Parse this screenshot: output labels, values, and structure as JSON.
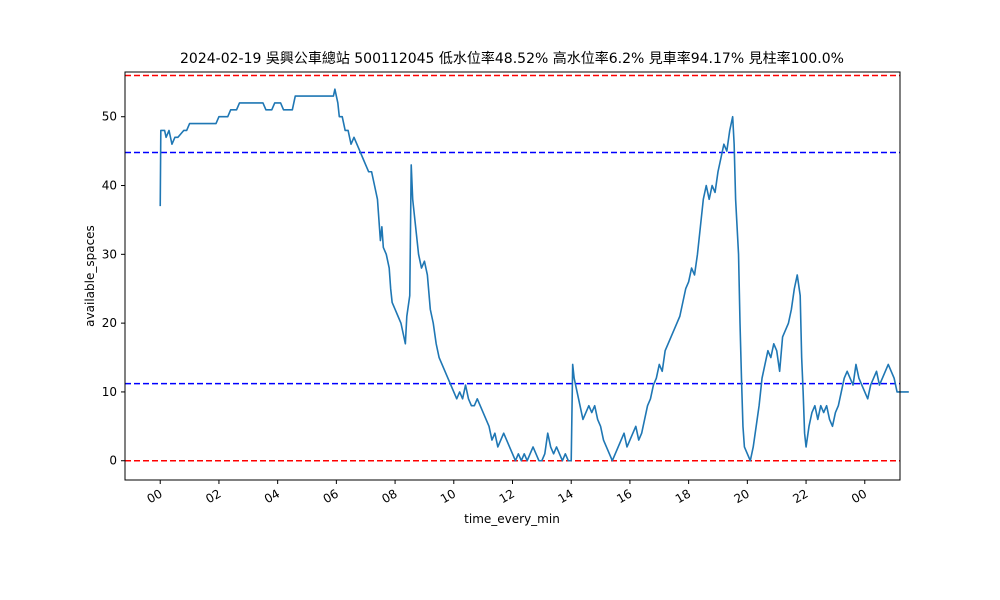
{
  "chart_data": {
    "type": "line",
    "title": "2024-02-19 吳興公車總站 500112045 低水位率48.52% 高水位率6.2% 見車率94.17% 見柱率100.0%",
    "xlabel": "time_every_min",
    "ylabel": "available_spaces",
    "x_ticks": [
      "00",
      "02",
      "04",
      "06",
      "08",
      "10",
      "12",
      "14",
      "16",
      "18",
      "20",
      "22",
      "00"
    ],
    "x_tick_hours": [
      0,
      2,
      4,
      6,
      8,
      10,
      12,
      14,
      16,
      18,
      20,
      22,
      24
    ],
    "y_ticks": [
      0,
      10,
      20,
      30,
      40,
      50
    ],
    "xlim": [
      -1.2,
      25.2
    ],
    "ylim": [
      -2.8,
      56.5
    ],
    "grid": false,
    "reference_lines": [
      {
        "y": 56,
        "color": "#ff0000",
        "style": "dashed"
      },
      {
        "y": 44.8,
        "color": "#0000ff",
        "style": "dashed"
      },
      {
        "y": 11.2,
        "color": "#0000ff",
        "style": "dashed"
      },
      {
        "y": 0,
        "color": "#ff0000",
        "style": "dashed"
      }
    ],
    "series": [
      {
        "color": "#1f77b4",
        "points": [
          [
            0.0,
            37
          ],
          [
            0.02,
            48
          ],
          [
            0.15,
            48
          ],
          [
            0.2,
            47
          ],
          [
            0.3,
            48
          ],
          [
            0.4,
            46
          ],
          [
            0.5,
            47
          ],
          [
            0.6,
            47
          ],
          [
            0.8,
            48
          ],
          [
            0.9,
            48
          ],
          [
            1.0,
            49
          ],
          [
            1.5,
            49
          ],
          [
            1.9,
            49
          ],
          [
            2.0,
            50
          ],
          [
            2.3,
            50
          ],
          [
            2.4,
            51
          ],
          [
            2.6,
            51
          ],
          [
            2.7,
            52
          ],
          [
            3.0,
            52
          ],
          [
            3.5,
            52
          ],
          [
            3.6,
            51
          ],
          [
            3.8,
            51
          ],
          [
            3.9,
            52
          ],
          [
            4.1,
            52
          ],
          [
            4.2,
            51
          ],
          [
            4.5,
            51
          ],
          [
            4.6,
            53
          ],
          [
            5.0,
            53
          ],
          [
            5.5,
            53
          ],
          [
            5.9,
            53
          ],
          [
            5.95,
            54
          ],
          [
            6.0,
            53
          ],
          [
            6.05,
            52
          ],
          [
            6.1,
            50
          ],
          [
            6.2,
            50
          ],
          [
            6.3,
            48
          ],
          [
            6.4,
            48
          ],
          [
            6.5,
            46
          ],
          [
            6.6,
            47
          ],
          [
            6.7,
            46
          ],
          [
            6.8,
            45
          ],
          [
            6.9,
            44
          ],
          [
            7.0,
            43
          ],
          [
            7.1,
            42
          ],
          [
            7.2,
            42
          ],
          [
            7.3,
            40
          ],
          [
            7.4,
            38
          ],
          [
            7.45,
            35
          ],
          [
            7.5,
            32
          ],
          [
            7.55,
            34
          ],
          [
            7.6,
            31
          ],
          [
            7.7,
            30
          ],
          [
            7.8,
            28
          ],
          [
            7.85,
            25
          ],
          [
            7.9,
            23
          ],
          [
            8.0,
            22
          ],
          [
            8.1,
            21
          ],
          [
            8.2,
            20
          ],
          [
            8.3,
            18
          ],
          [
            8.35,
            17
          ],
          [
            8.4,
            21
          ],
          [
            8.5,
            24
          ],
          [
            8.55,
            43
          ],
          [
            8.6,
            38
          ],
          [
            8.7,
            34
          ],
          [
            8.8,
            30
          ],
          [
            8.9,
            28
          ],
          [
            9.0,
            29
          ],
          [
            9.1,
            27
          ],
          [
            9.2,
            22
          ],
          [
            9.3,
            20
          ],
          [
            9.4,
            17
          ],
          [
            9.5,
            15
          ],
          [
            9.6,
            14
          ],
          [
            9.7,
            13
          ],
          [
            9.8,
            12
          ],
          [
            9.9,
            11
          ],
          [
            10.0,
            10
          ],
          [
            10.1,
            9
          ],
          [
            10.2,
            10
          ],
          [
            10.3,
            9
          ],
          [
            10.4,
            11
          ],
          [
            10.5,
            9
          ],
          [
            10.6,
            8
          ],
          [
            10.7,
            8
          ],
          [
            10.8,
            9
          ],
          [
            10.9,
            8
          ],
          [
            11.0,
            7
          ],
          [
            11.1,
            6
          ],
          [
            11.2,
            5
          ],
          [
            11.3,
            3
          ],
          [
            11.4,
            4
          ],
          [
            11.5,
            2
          ],
          [
            11.6,
            3
          ],
          [
            11.7,
            4
          ],
          [
            11.8,
            3
          ],
          [
            11.9,
            2
          ],
          [
            12.0,
            1
          ],
          [
            12.1,
            0
          ],
          [
            12.2,
            1
          ],
          [
            12.3,
            0
          ],
          [
            12.4,
            1
          ],
          [
            12.5,
            0
          ],
          [
            12.6,
            1
          ],
          [
            12.7,
            2
          ],
          [
            12.8,
            1
          ],
          [
            12.9,
            0
          ],
          [
            13.0,
            0
          ],
          [
            13.1,
            1
          ],
          [
            13.2,
            4
          ],
          [
            13.3,
            2
          ],
          [
            13.4,
            1
          ],
          [
            13.5,
            2
          ],
          [
            13.6,
            1
          ],
          [
            13.7,
            0
          ],
          [
            13.8,
            1
          ],
          [
            13.9,
            0
          ],
          [
            14.0,
            0
          ],
          [
            14.05,
            14
          ],
          [
            14.1,
            12
          ],
          [
            14.2,
            10
          ],
          [
            14.3,
            8
          ],
          [
            14.4,
            6
          ],
          [
            14.5,
            7
          ],
          [
            14.6,
            8
          ],
          [
            14.7,
            7
          ],
          [
            14.8,
            8
          ],
          [
            14.9,
            6
          ],
          [
            15.0,
            5
          ],
          [
            15.1,
            3
          ],
          [
            15.2,
            2
          ],
          [
            15.3,
            1
          ],
          [
            15.4,
            0
          ],
          [
            15.5,
            1
          ],
          [
            15.6,
            2
          ],
          [
            15.7,
            3
          ],
          [
            15.8,
            4
          ],
          [
            15.9,
            2
          ],
          [
            16.0,
            3
          ],
          [
            16.1,
            4
          ],
          [
            16.2,
            5
          ],
          [
            16.3,
            3
          ],
          [
            16.4,
            4
          ],
          [
            16.5,
            6
          ],
          [
            16.6,
            8
          ],
          [
            16.7,
            9
          ],
          [
            16.8,
            11
          ],
          [
            16.9,
            12
          ],
          [
            17.0,
            14
          ],
          [
            17.1,
            13
          ],
          [
            17.2,
            16
          ],
          [
            17.3,
            17
          ],
          [
            17.4,
            18
          ],
          [
            17.5,
            19
          ],
          [
            17.6,
            20
          ],
          [
            17.7,
            21
          ],
          [
            17.8,
            23
          ],
          [
            17.9,
            25
          ],
          [
            18.0,
            26
          ],
          [
            18.1,
            28
          ],
          [
            18.2,
            27
          ],
          [
            18.3,
            30
          ],
          [
            18.4,
            34
          ],
          [
            18.5,
            38
          ],
          [
            18.6,
            40
          ],
          [
            18.7,
            38
          ],
          [
            18.8,
            40
          ],
          [
            18.9,
            39
          ],
          [
            19.0,
            42
          ],
          [
            19.1,
            44
          ],
          [
            19.2,
            46
          ],
          [
            19.3,
            45
          ],
          [
            19.4,
            48
          ],
          [
            19.5,
            50
          ],
          [
            19.55,
            46
          ],
          [
            19.6,
            38
          ],
          [
            19.7,
            30
          ],
          [
            19.75,
            20
          ],
          [
            19.8,
            12
          ],
          [
            19.85,
            5
          ],
          [
            19.9,
            2
          ],
          [
            20.0,
            1
          ],
          [
            20.1,
            0
          ],
          [
            20.2,
            2
          ],
          [
            20.3,
            5
          ],
          [
            20.4,
            8
          ],
          [
            20.5,
            12
          ],
          [
            20.6,
            14
          ],
          [
            20.7,
            16
          ],
          [
            20.8,
            15
          ],
          [
            20.9,
            17
          ],
          [
            21.0,
            16
          ],
          [
            21.1,
            13
          ],
          [
            21.2,
            18
          ],
          [
            21.3,
            19
          ],
          [
            21.4,
            20
          ],
          [
            21.5,
            22
          ],
          [
            21.6,
            25
          ],
          [
            21.7,
            27
          ],
          [
            21.8,
            24
          ],
          [
            21.85,
            15
          ],
          [
            21.9,
            10
          ],
          [
            21.95,
            4
          ],
          [
            22.0,
            2
          ],
          [
            22.1,
            5
          ],
          [
            22.2,
            7
          ],
          [
            22.3,
            8
          ],
          [
            22.4,
            6
          ],
          [
            22.5,
            8
          ],
          [
            22.6,
            7
          ],
          [
            22.7,
            8
          ],
          [
            22.8,
            6
          ],
          [
            22.9,
            5
          ],
          [
            23.0,
            7
          ],
          [
            23.1,
            8
          ],
          [
            23.2,
            10
          ],
          [
            23.3,
            12
          ],
          [
            23.4,
            13
          ],
          [
            23.5,
            12
          ],
          [
            23.6,
            11
          ],
          [
            23.7,
            14
          ],
          [
            23.8,
            12
          ],
          [
            23.9,
            11
          ],
          [
            24.0,
            10
          ],
          [
            24.1,
            9
          ],
          [
            24.2,
            11
          ],
          [
            24.3,
            12
          ],
          [
            24.4,
            13
          ],
          [
            24.5,
            11
          ],
          [
            24.6,
            12
          ],
          [
            24.7,
            13
          ],
          [
            24.8,
            14
          ],
          [
            24.9,
            13
          ],
          [
            25.0,
            12
          ],
          [
            25.1,
            10
          ],
          [
            25.5,
            10
          ]
        ]
      }
    ]
  }
}
